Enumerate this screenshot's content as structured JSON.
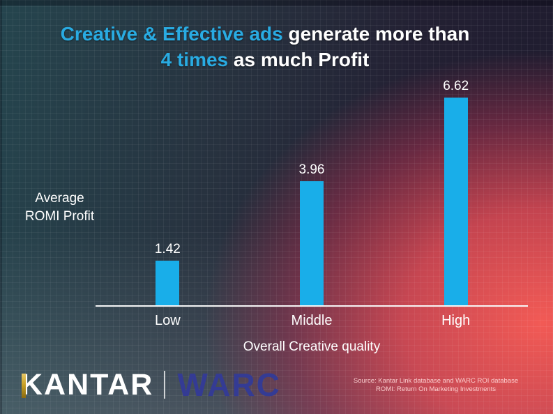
{
  "title": {
    "line1_highlight": "Creative & Effective ads",
    "line1_rest": " generate more than",
    "line2_highlight": "4 times",
    "line2_rest": " as much Profit",
    "highlight_color": "#29ABE2"
  },
  "chart_data": {
    "type": "bar",
    "title": "Creative & Effective ads generate more than 4 times as much Profit",
    "categories": [
      "Low",
      "Middle",
      "High"
    ],
    "values": [
      1.42,
      3.96,
      6.62
    ],
    "value_labels": [
      "1.42",
      "3.96",
      "6.62"
    ],
    "xlabel": "Overall Creative quality",
    "ylabel_line1": "Average",
    "ylabel_line2": "ROMI Profit",
    "ylim": [
      0,
      7
    ],
    "bar_color": "#19AEE9",
    "axis_color": "#F7F7F7",
    "grid": false,
    "legend": "none"
  },
  "footer": {
    "kantar_logo": "KANTAR",
    "warc_logo": "WARC",
    "kantar_gold": "#C9A227",
    "warc_color": "#343B94",
    "source_line1": "Source: Kantar Link database and WARC ROI database",
    "source_line2": "ROMI: Return On Marketing Investments"
  }
}
